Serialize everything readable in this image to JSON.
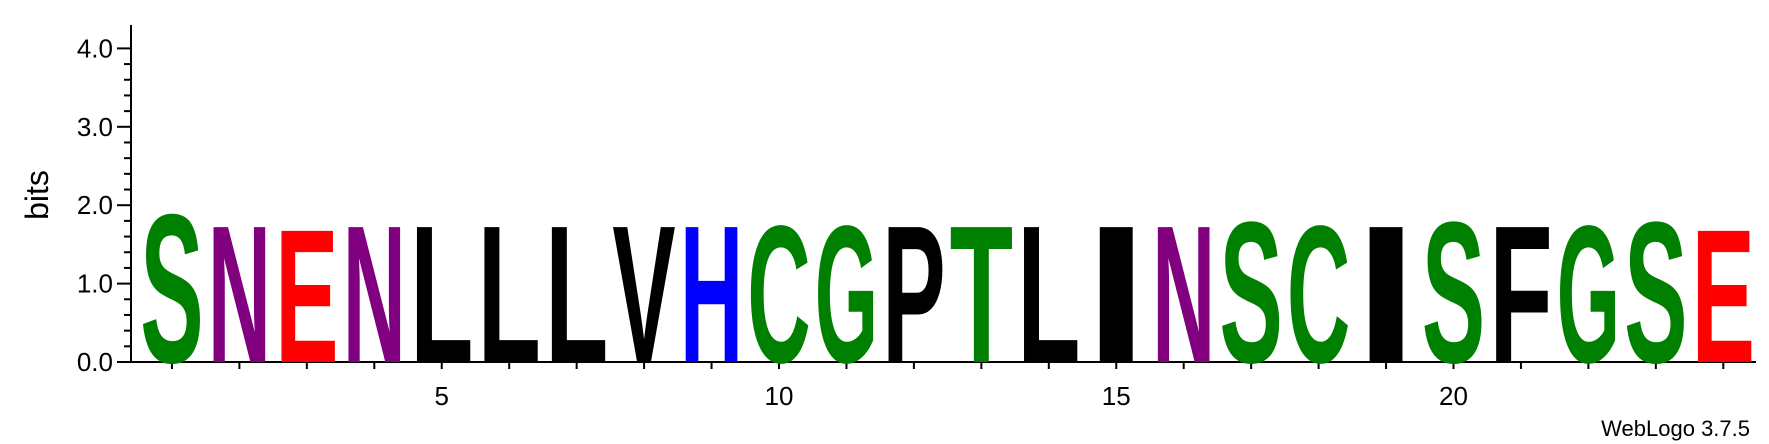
{
  "chart_data": {
    "type": "sequence-logo",
    "ylabel": "bits",
    "ylim": [
      0,
      4.3
    ],
    "y_ticks": [
      "0.0",
      "1.0",
      "2.0",
      "3.0",
      "4.0"
    ],
    "x_ticks": [
      "5",
      "10",
      "15",
      "20"
    ],
    "positions": [
      {
        "pos": 1,
        "letter": "S",
        "bits": 1.95,
        "color": "#008000"
      },
      {
        "pos": 2,
        "letter": "N",
        "bits": 1.8,
        "color": "#800080"
      },
      {
        "pos": 3,
        "letter": "E",
        "bits": 1.75,
        "color": "#ff0000"
      },
      {
        "pos": 4,
        "letter": "N",
        "bits": 1.8,
        "color": "#800080"
      },
      {
        "pos": 5,
        "letter": "L",
        "bits": 1.8,
        "color": "#000000"
      },
      {
        "pos": 6,
        "letter": "L",
        "bits": 1.8,
        "color": "#000000"
      },
      {
        "pos": 7,
        "letter": "L",
        "bits": 1.8,
        "color": "#000000"
      },
      {
        "pos": 8,
        "letter": "V",
        "bits": 1.8,
        "color": "#000000"
      },
      {
        "pos": 9,
        "letter": "H",
        "bits": 1.8,
        "color": "#0000ff"
      },
      {
        "pos": 10,
        "letter": "C",
        "bits": 1.8,
        "color": "#008000"
      },
      {
        "pos": 11,
        "letter": "G",
        "bits": 1.8,
        "color": "#008000"
      },
      {
        "pos": 12,
        "letter": "P",
        "bits": 1.8,
        "color": "#000000"
      },
      {
        "pos": 13,
        "letter": "T",
        "bits": 1.8,
        "color": "#008000"
      },
      {
        "pos": 14,
        "letter": "L",
        "bits": 1.8,
        "color": "#000000"
      },
      {
        "pos": 15,
        "letter": "I",
        "bits": 1.8,
        "color": "#000000"
      },
      {
        "pos": 16,
        "letter": "N",
        "bits": 1.8,
        "color": "#800080"
      },
      {
        "pos": 17,
        "letter": "S",
        "bits": 1.85,
        "color": "#008000"
      },
      {
        "pos": 18,
        "letter": "C",
        "bits": 1.8,
        "color": "#008000"
      },
      {
        "pos": 19,
        "letter": "I",
        "bits": 1.8,
        "color": "#000000"
      },
      {
        "pos": 20,
        "letter": "S",
        "bits": 1.85,
        "color": "#008000"
      },
      {
        "pos": 21,
        "letter": "F",
        "bits": 1.8,
        "color": "#000000"
      },
      {
        "pos": 22,
        "letter": "G",
        "bits": 1.8,
        "color": "#008000"
      },
      {
        "pos": 23,
        "letter": "S",
        "bits": 1.85,
        "color": "#008000"
      },
      {
        "pos": 24,
        "letter": "E",
        "bits": 1.75,
        "color": "#ff0000"
      }
    ]
  },
  "footer": {
    "text": "WebLogo 3.7.5"
  }
}
